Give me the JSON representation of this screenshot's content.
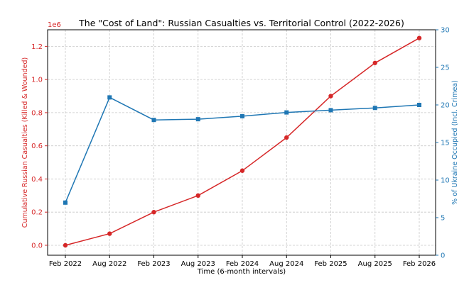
{
  "chart_data": {
    "type": "line",
    "title": "The \"Cost of Land\": Russian Casualties vs. Territorial Control (2022-2026)",
    "xlabel": "Time (6-month intervals)",
    "categories": [
      "Feb 2022",
      "Aug 2022",
      "Feb 2023",
      "Aug 2023",
      "Feb 2024",
      "Aug 2024",
      "Feb 2025",
      "Aug 2025",
      "Feb 2026"
    ],
    "left_axis": {
      "label": "Cumulative Russian Casualties (Killed & Wounded)",
      "offset_text": "1e6",
      "ylim": [
        -0.06,
        1.3
      ],
      "ticks": [
        0.0,
        0.2,
        0.4,
        0.6,
        0.8,
        1.0,
        1.2
      ],
      "tick_labels": [
        "0.0",
        "0.2",
        "0.4",
        "0.6",
        "0.8",
        "1.0",
        "1.2"
      ],
      "color": "#d62728"
    },
    "right_axis": {
      "label": "% of Ukraine Occupied (Incl. Crimea)",
      "ylim": [
        0,
        30
      ],
      "ticks": [
        0,
        5,
        10,
        15,
        20,
        25,
        30
      ],
      "tick_labels": [
        "0",
        "5",
        "10",
        "15",
        "20",
        "25",
        "30"
      ],
      "color": "#1f77b4"
    },
    "series": [
      {
        "name": "Cumulative Russian Casualties",
        "axis": "left",
        "color": "#d62728",
        "marker": "circle",
        "values": [
          0.0,
          0.07,
          0.2,
          0.3,
          0.45,
          0.65,
          0.9,
          1.1,
          1.25
        ]
      },
      {
        "name": "% of Ukraine Occupied",
        "axis": "right",
        "color": "#1f77b4",
        "marker": "square",
        "values": [
          7.0,
          21.0,
          18.0,
          18.1,
          18.5,
          19.0,
          19.3,
          19.6,
          20.0
        ]
      }
    ],
    "grid": true
  }
}
